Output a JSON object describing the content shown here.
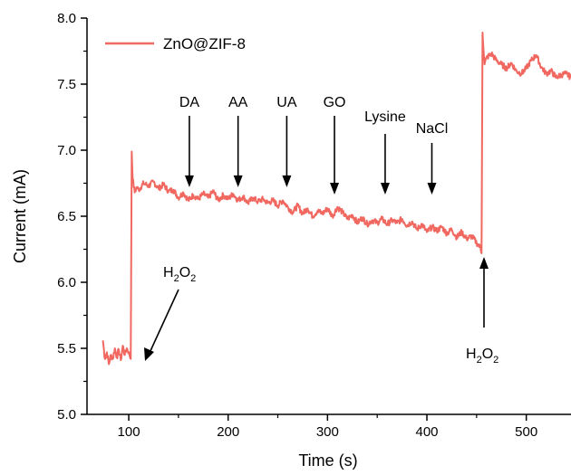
{
  "chart_data": {
    "type": "line",
    "xlabel": "Time (s)",
    "ylabel": "Current (mA)",
    "xlim": [
      58,
      545
    ],
    "ylim": [
      5.0,
      8.0
    ],
    "x_ticks": [
      100,
      200,
      300,
      400,
      500
    ],
    "y_ticks": [
      5.0,
      5.5,
      6.0,
      6.5,
      7.0,
      7.5,
      8.0
    ],
    "x_tick_labels": [
      "100",
      "200",
      "300",
      "400",
      "500"
    ],
    "y_tick_labels": [
      "5.0",
      "5.5",
      "6.0",
      "6.5",
      "7.0",
      "7.5",
      "8.0"
    ],
    "legend": {
      "position": "top-left"
    },
    "series": [
      {
        "name": "ZnO@ZIF-8",
        "color": "#f06860",
        "x": [
          74,
          76,
          78,
          80,
          82,
          84,
          86,
          88,
          90,
          92,
          94,
          96,
          98,
          100,
          102,
          103,
          104,
          106,
          108,
          110,
          115,
          120,
          125,
          130,
          135,
          140,
          145,
          150,
          155,
          160,
          165,
          170,
          175,
          180,
          185,
          190,
          195,
          200,
          205,
          210,
          215,
          220,
          225,
          230,
          235,
          240,
          245,
          250,
          255,
          260,
          265,
          270,
          275,
          280,
          285,
          290,
          295,
          300,
          305,
          310,
          315,
          320,
          325,
          330,
          335,
          340,
          345,
          350,
          355,
          360,
          365,
          370,
          375,
          380,
          385,
          390,
          395,
          400,
          405,
          410,
          415,
          420,
          425,
          430,
          435,
          440,
          445,
          450,
          452,
          454,
          455,
          456,
          458,
          460,
          465,
          470,
          475,
          480,
          485,
          490,
          495,
          500,
          505,
          510,
          515,
          520,
          525,
          530,
          535,
          540,
          545
        ],
        "y": [
          5.56,
          5.42,
          5.47,
          5.38,
          5.45,
          5.42,
          5.5,
          5.43,
          5.49,
          5.41,
          5.52,
          5.45,
          5.5,
          5.47,
          5.42,
          6.99,
          6.78,
          6.68,
          6.72,
          6.7,
          6.75,
          6.73,
          6.76,
          6.71,
          6.74,
          6.69,
          6.7,
          6.64,
          6.68,
          6.62,
          6.66,
          6.63,
          6.67,
          6.64,
          6.69,
          6.62,
          6.66,
          6.63,
          6.67,
          6.62,
          6.65,
          6.6,
          6.64,
          6.61,
          6.63,
          6.6,
          6.62,
          6.58,
          6.62,
          6.57,
          6.53,
          6.58,
          6.52,
          6.56,
          6.5,
          6.54,
          6.52,
          6.56,
          6.5,
          6.57,
          6.53,
          6.48,
          6.51,
          6.45,
          6.49,
          6.44,
          6.47,
          6.45,
          6.48,
          6.44,
          6.47,
          6.45,
          6.48,
          6.43,
          6.46,
          6.4,
          6.44,
          6.38,
          6.42,
          6.39,
          6.42,
          6.37,
          6.4,
          6.34,
          6.38,
          6.33,
          6.35,
          6.3,
          6.28,
          6.26,
          6.22,
          7.89,
          7.65,
          7.7,
          7.73,
          7.68,
          7.65,
          7.62,
          7.66,
          7.6,
          7.58,
          7.62,
          7.68,
          7.72,
          7.63,
          7.58,
          7.6,
          7.55,
          7.57,
          7.58,
          7.55
        ]
      }
    ],
    "annotations": [
      {
        "label": "DA",
        "x": 161
      },
      {
        "label": "AA",
        "x": 210
      },
      {
        "label": "UA",
        "x": 259
      },
      {
        "label": "GO",
        "x": 307
      },
      {
        "label": "Lysine",
        "x": 358
      },
      {
        "label": "NaCl",
        "x": 405
      }
    ],
    "h2o2_labels": [
      {
        "base": "H",
        "sub1": "2",
        "mid": "O",
        "sub2": "2"
      },
      {
        "base": "H",
        "sub1": "2",
        "mid": "O",
        "sub2": "2"
      }
    ]
  }
}
